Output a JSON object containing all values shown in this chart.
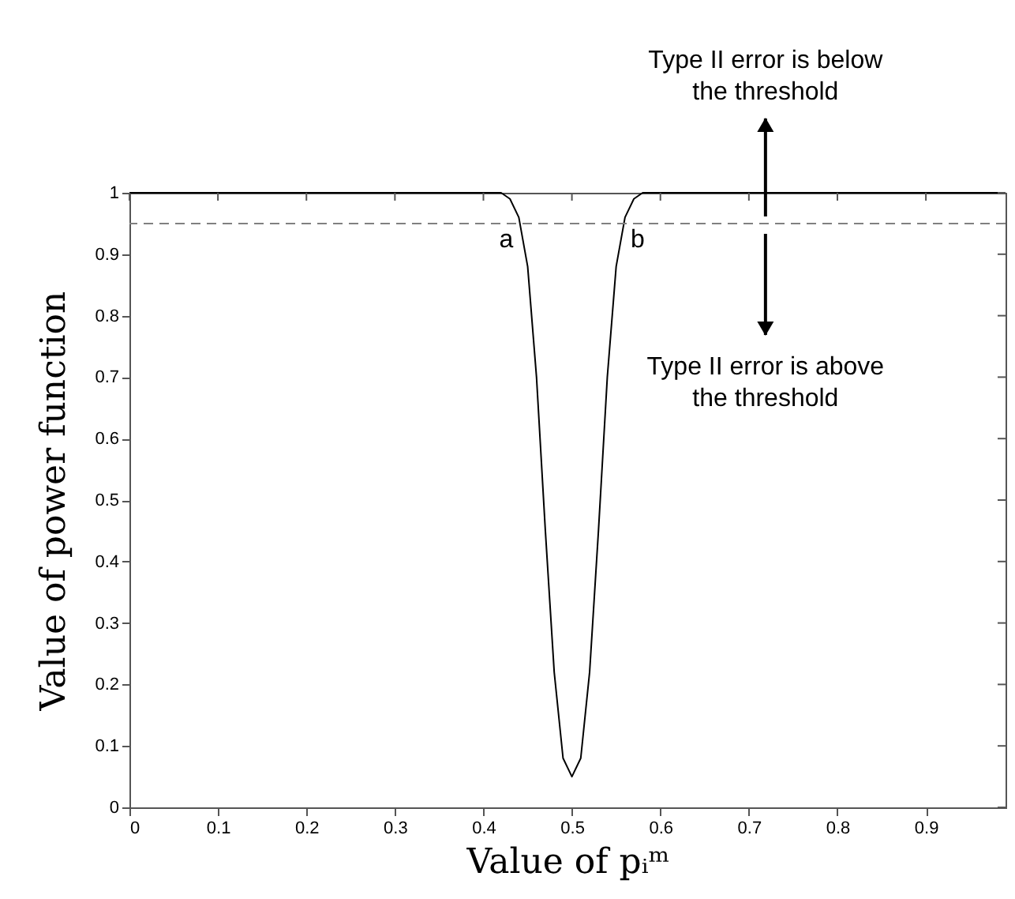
{
  "chart_data": {
    "type": "line",
    "xlabel": "Value of pᵢᵐ",
    "ylabel": "Value of power function",
    "x": [
      0,
      0.42,
      0.43,
      0.44,
      0.45,
      0.46,
      0.47,
      0.48,
      0.49,
      0.5,
      0.51,
      0.52,
      0.53,
      0.54,
      0.55,
      0.56,
      0.57,
      0.58,
      0.99
    ],
    "series": [
      {
        "color": "#000000",
        "values": [
          1,
          1,
          0.99,
          0.96,
          0.88,
          0.7,
          0.45,
          0.22,
          0.08,
          0.05,
          0.08,
          0.22,
          0.45,
          0.7,
          0.88,
          0.96,
          0.99,
          1,
          1
        ]
      }
    ],
    "xlim": [
      0,
      0.99
    ],
    "xticks": [
      0,
      0.1,
      0.2,
      0.3,
      0.4,
      0.5,
      0.6,
      0.7,
      0.8,
      0.9
    ],
    "ylim": [
      0,
      1
    ],
    "yticks": [
      0,
      0.1,
      0.2,
      0.3,
      0.4,
      0.5,
      0.6,
      0.7,
      0.8,
      0.9,
      1
    ],
    "ref_lines": [
      {
        "axis": "y",
        "value": 0.95,
        "color": "#808080",
        "line_style": "dashed"
      }
    ],
    "annotations": [
      {
        "text": "a",
        "x": 0.44,
        "y": 0.95
      },
      {
        "text": "b",
        "x": 0.56,
        "y": 0.95
      },
      "Type II error is below\nthe threshold",
      "Type II error is above\nthe threshold"
    ],
    "grid": false,
    "marker": "none",
    "line_style": "solid"
  }
}
